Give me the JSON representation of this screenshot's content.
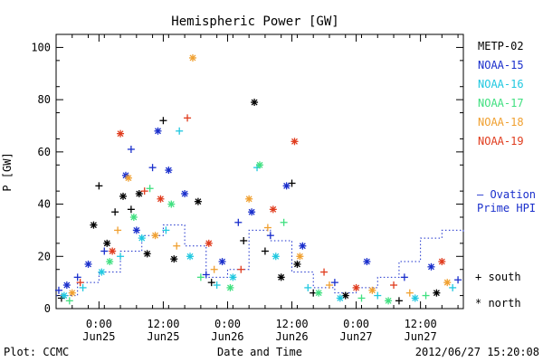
{
  "chart_data": {
    "type": "scatter",
    "title": "Hemispheric Power [GW]",
    "ylabel": "P [GW]",
    "xlabel": "Date and Time",
    "ylim": [
      0,
      105
    ],
    "xlim": [
      "2012-06-24T16:00",
      "2012-06-27T20:00"
    ],
    "y_ticks": [
      0,
      20,
      40,
      60,
      80,
      100
    ],
    "x_ticks": [
      {
        "time": "2012-06-25T00:00",
        "line1": "0:00",
        "line2": "Jun25"
      },
      {
        "time": "2012-06-25T12:00",
        "line1": "12:00",
        "line2": "Jun25"
      },
      {
        "time": "2012-06-26T00:00",
        "line1": "0:00",
        "line2": "Jun26"
      },
      {
        "time": "2012-06-26T12:00",
        "line1": "12:00",
        "line2": "Jun26"
      },
      {
        "time": "2012-06-27T00:00",
        "line1": "0:00",
        "line2": "Jun27"
      },
      {
        "time": "2012-06-27T12:00",
        "line1": "12:00",
        "line2": "Jun27"
      }
    ],
    "legend_position": "right",
    "series": [
      {
        "name": "METP-02",
        "color": "#000000",
        "points": [
          {
            "t": "2012-06-24T17:00",
            "y": 4,
            "m": "+"
          },
          {
            "t": "2012-06-24T23:00",
            "y": 32,
            "m": "*"
          },
          {
            "t": "2012-06-25T00:00",
            "y": 47,
            "m": "+"
          },
          {
            "t": "2012-06-25T01:30",
            "y": 25,
            "m": "*"
          },
          {
            "t": "2012-06-25T03:00",
            "y": 37,
            "m": "+"
          },
          {
            "t": "2012-06-25T04:30",
            "y": 43,
            "m": "*"
          },
          {
            "t": "2012-06-25T06:00",
            "y": 38,
            "m": "+"
          },
          {
            "t": "2012-06-25T07:30",
            "y": 44,
            "m": "*"
          },
          {
            "t": "2012-06-25T09:00",
            "y": 21,
            "m": "*"
          },
          {
            "t": "2012-06-25T12:00",
            "y": 72,
            "m": "+"
          },
          {
            "t": "2012-06-25T14:00",
            "y": 19,
            "m": "*"
          },
          {
            "t": "2012-06-25T18:30",
            "y": 41,
            "m": "*"
          },
          {
            "t": "2012-06-25T21:00",
            "y": 10,
            "m": "+"
          },
          {
            "t": "2012-06-26T03:00",
            "y": 26,
            "m": "+"
          },
          {
            "t": "2012-06-26T05:00",
            "y": 79,
            "m": "*"
          },
          {
            "t": "2012-06-26T07:00",
            "y": 22,
            "m": "+"
          },
          {
            "t": "2012-06-26T10:00",
            "y": 12,
            "m": "*"
          },
          {
            "t": "2012-06-26T12:00",
            "y": 48,
            "m": "+"
          },
          {
            "t": "2012-06-26T13:00",
            "y": 17,
            "m": "*"
          },
          {
            "t": "2012-06-26T16:00",
            "y": 6,
            "m": "+"
          },
          {
            "t": "2012-06-26T22:00",
            "y": 5,
            "m": "*"
          },
          {
            "t": "2012-06-27T08:00",
            "y": 3,
            "m": "+"
          },
          {
            "t": "2012-06-27T15:00",
            "y": 6,
            "m": "*"
          }
        ]
      },
      {
        "name": "NOAA-15",
        "color": "#1a2fcc",
        "points": [
          {
            "t": "2012-06-24T16:30",
            "y": 7,
            "m": "+"
          },
          {
            "t": "2012-06-24T18:00",
            "y": 9,
            "m": "*"
          },
          {
            "t": "2012-06-24T20:00",
            "y": 12,
            "m": "+"
          },
          {
            "t": "2012-06-24T22:00",
            "y": 17,
            "m": "*"
          },
          {
            "t": "2012-06-25T01:00",
            "y": 22,
            "m": "+"
          },
          {
            "t": "2012-06-25T05:00",
            "y": 51,
            "m": "*"
          },
          {
            "t": "2012-06-25T06:00",
            "y": 61,
            "m": "+"
          },
          {
            "t": "2012-06-25T07:00",
            "y": 30,
            "m": "*"
          },
          {
            "t": "2012-06-25T10:00",
            "y": 54,
            "m": "+"
          },
          {
            "t": "2012-06-25T11:00",
            "y": 68,
            "m": "*"
          },
          {
            "t": "2012-06-25T13:00",
            "y": 53,
            "m": "*"
          },
          {
            "t": "2012-06-25T16:00",
            "y": 44,
            "m": "*"
          },
          {
            "t": "2012-06-25T20:00",
            "y": 13,
            "m": "+"
          },
          {
            "t": "2012-06-25T23:00",
            "y": 18,
            "m": "*"
          },
          {
            "t": "2012-06-26T02:00",
            "y": 33,
            "m": "+"
          },
          {
            "t": "2012-06-26T04:30",
            "y": 37,
            "m": "*"
          },
          {
            "t": "2012-06-26T08:00",
            "y": 28,
            "m": "+"
          },
          {
            "t": "2012-06-26T11:00",
            "y": 47,
            "m": "*"
          },
          {
            "t": "2012-06-26T14:00",
            "y": 24,
            "m": "*"
          },
          {
            "t": "2012-06-26T20:00",
            "y": 10,
            "m": "+"
          },
          {
            "t": "2012-06-27T02:00",
            "y": 18,
            "m": "*"
          },
          {
            "t": "2012-06-27T09:00",
            "y": 12,
            "m": "+"
          },
          {
            "t": "2012-06-27T14:00",
            "y": 16,
            "m": "*"
          },
          {
            "t": "2012-06-27T19:00",
            "y": 11,
            "m": "+"
          }
        ]
      },
      {
        "name": "NOAA-16",
        "color": "#20c8e0",
        "points": [
          {
            "t": "2012-06-24T17:30",
            "y": 5,
            "m": "*"
          },
          {
            "t": "2012-06-24T21:00",
            "y": 8,
            "m": "+"
          },
          {
            "t": "2012-06-25T00:30",
            "y": 14,
            "m": "*"
          },
          {
            "t": "2012-06-25T04:00",
            "y": 20,
            "m": "+"
          },
          {
            "t": "2012-06-25T08:00",
            "y": 27,
            "m": "*"
          },
          {
            "t": "2012-06-25T12:30",
            "y": 30,
            "m": "+"
          },
          {
            "t": "2012-06-25T15:00",
            "y": 68,
            "m": "+"
          },
          {
            "t": "2012-06-25T17:00",
            "y": 20,
            "m": "*"
          },
          {
            "t": "2012-06-25T22:00",
            "y": 9,
            "m": "+"
          },
          {
            "t": "2012-06-26T01:00",
            "y": 12,
            "m": "*"
          },
          {
            "t": "2012-06-26T05:30",
            "y": 54,
            "m": "+"
          },
          {
            "t": "2012-06-26T09:00",
            "y": 20,
            "m": "*"
          },
          {
            "t": "2012-06-26T15:00",
            "y": 8,
            "m": "+"
          },
          {
            "t": "2012-06-26T21:00",
            "y": 4,
            "m": "*"
          },
          {
            "t": "2012-06-27T04:00",
            "y": 5,
            "m": "+"
          },
          {
            "t": "2012-06-27T11:00",
            "y": 4,
            "m": "*"
          },
          {
            "t": "2012-06-27T18:00",
            "y": 8,
            "m": "+"
          }
        ]
      },
      {
        "name": "NOAA-17",
        "color": "#40e080",
        "points": [
          {
            "t": "2012-06-24T18:30",
            "y": 3,
            "m": "+"
          },
          {
            "t": "2012-06-25T02:00",
            "y": 18,
            "m": "*"
          },
          {
            "t": "2012-06-25T06:30",
            "y": 35,
            "m": "*"
          },
          {
            "t": "2012-06-25T09:30",
            "y": 46,
            "m": "+"
          },
          {
            "t": "2012-06-25T13:30",
            "y": 40,
            "m": "*"
          },
          {
            "t": "2012-06-25T19:00",
            "y": 12,
            "m": "+"
          },
          {
            "t": "2012-06-26T00:30",
            "y": 8,
            "m": "*"
          },
          {
            "t": "2012-06-26T06:00",
            "y": 55,
            "m": "*"
          },
          {
            "t": "2012-06-26T10:30",
            "y": 33,
            "m": "+"
          },
          {
            "t": "2012-06-26T17:00",
            "y": 6,
            "m": "*"
          },
          {
            "t": "2012-06-27T01:00",
            "y": 4,
            "m": "+"
          },
          {
            "t": "2012-06-27T06:00",
            "y": 3,
            "m": "*"
          },
          {
            "t": "2012-06-27T13:00",
            "y": 5,
            "m": "+"
          }
        ]
      },
      {
        "name": "NOAA-18",
        "color": "#f0a030",
        "points": [
          {
            "t": "2012-06-24T19:00",
            "y": 6,
            "m": "*"
          },
          {
            "t": "2012-06-25T03:30",
            "y": 30,
            "m": "+"
          },
          {
            "t": "2012-06-25T05:30",
            "y": 50,
            "m": "*"
          },
          {
            "t": "2012-06-25T10:30",
            "y": 28,
            "m": "*"
          },
          {
            "t": "2012-06-25T14:30",
            "y": 24,
            "m": "+"
          },
          {
            "t": "2012-06-25T17:30",
            "y": 96,
            "m": "*"
          },
          {
            "t": "2012-06-25T21:30",
            "y": 15,
            "m": "+"
          },
          {
            "t": "2012-06-26T04:00",
            "y": 42,
            "m": "*"
          },
          {
            "t": "2012-06-26T07:30",
            "y": 31,
            "m": "+"
          },
          {
            "t": "2012-06-26T13:30",
            "y": 20,
            "m": "*"
          },
          {
            "t": "2012-06-26T19:00",
            "y": 9,
            "m": "+"
          },
          {
            "t": "2012-06-27T03:00",
            "y": 7,
            "m": "*"
          },
          {
            "t": "2012-06-27T10:00",
            "y": 6,
            "m": "+"
          },
          {
            "t": "2012-06-27T17:00",
            "y": 10,
            "m": "*"
          }
        ]
      },
      {
        "name": "NOAA-19",
        "color": "#e03c1e",
        "points": [
          {
            "t": "2012-06-24T20:30",
            "y": 10,
            "m": "+"
          },
          {
            "t": "2012-06-25T02:30",
            "y": 22,
            "m": "*"
          },
          {
            "t": "2012-06-25T04:00",
            "y": 67,
            "m": "*"
          },
          {
            "t": "2012-06-25T08:30",
            "y": 45,
            "m": "+"
          },
          {
            "t": "2012-06-25T11:30",
            "y": 42,
            "m": "*"
          },
          {
            "t": "2012-06-25T16:30",
            "y": 73,
            "m": "+"
          },
          {
            "t": "2012-06-25T20:30",
            "y": 25,
            "m": "*"
          },
          {
            "t": "2012-06-26T02:30",
            "y": 15,
            "m": "+"
          },
          {
            "t": "2012-06-26T08:30",
            "y": 38,
            "m": "*"
          },
          {
            "t": "2012-06-26T12:30",
            "y": 64,
            "m": "*"
          },
          {
            "t": "2012-06-26T18:00",
            "y": 14,
            "m": "+"
          },
          {
            "t": "2012-06-27T00:00",
            "y": 8,
            "m": "*"
          },
          {
            "t": "2012-06-27T07:00",
            "y": 9,
            "m": "+"
          },
          {
            "t": "2012-06-27T16:00",
            "y": 18,
            "m": "*"
          }
        ]
      }
    ],
    "ovation": {
      "label_line1": "— Ovation",
      "label_line2": "Prime HPI",
      "color": "#1a2fcc",
      "steps": [
        {
          "t": "2012-06-24T16:00",
          "y": 5
        },
        {
          "t": "2012-06-24T20:00",
          "y": 10
        },
        {
          "t": "2012-06-25T00:00",
          "y": 14
        },
        {
          "t": "2012-06-25T04:00",
          "y": 22
        },
        {
          "t": "2012-06-25T08:00",
          "y": 28
        },
        {
          "t": "2012-06-25T12:00",
          "y": 32
        },
        {
          "t": "2012-06-25T16:00",
          "y": 24
        },
        {
          "t": "2012-06-25T20:00",
          "y": 12
        },
        {
          "t": "2012-06-26T00:00",
          "y": 15
        },
        {
          "t": "2012-06-26T04:00",
          "y": 30
        },
        {
          "t": "2012-06-26T08:00",
          "y": 26
        },
        {
          "t": "2012-06-26T12:00",
          "y": 14
        },
        {
          "t": "2012-06-26T16:00",
          "y": 8
        },
        {
          "t": "2012-06-26T20:00",
          "y": 6
        },
        {
          "t": "2012-06-27T00:00",
          "y": 8
        },
        {
          "t": "2012-06-27T04:00",
          "y": 12
        },
        {
          "t": "2012-06-27T08:00",
          "y": 18
        },
        {
          "t": "2012-06-27T12:00",
          "y": 27
        },
        {
          "t": "2012-06-27T16:00",
          "y": 30
        },
        {
          "t": "2012-06-27T20:00",
          "y": 29
        }
      ]
    },
    "marker_legend": [
      {
        "marker": "+",
        "label": "south"
      },
      {
        "marker": "*",
        "label": "north"
      }
    ]
  },
  "footer": {
    "left": "Plot: CCMC",
    "center": "Date and Time",
    "right": "2012/06/27 15:20:08"
  }
}
